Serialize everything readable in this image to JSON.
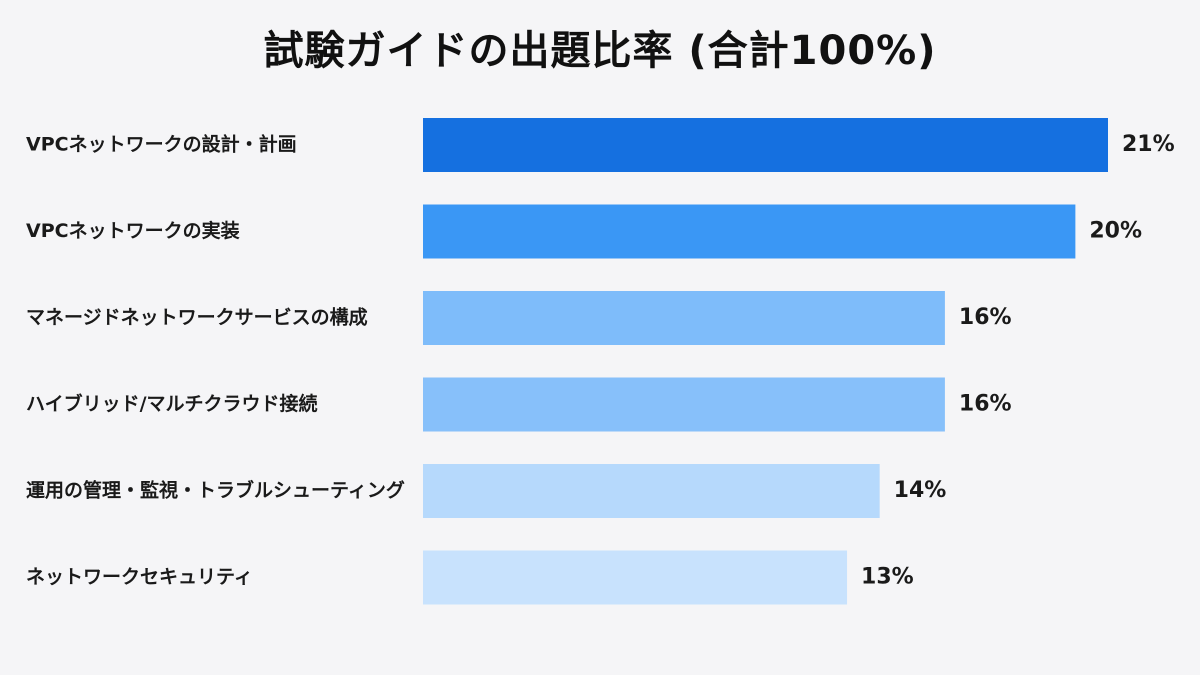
{
  "title": "試験ガイドの出題比率 (合計100%)",
  "chart_data": {
    "type": "bar",
    "orientation": "horizontal",
    "title": "試験ガイドの出題比率 (合計100%)",
    "categories": [
      "VPCネットワークの設計・計画",
      "VPCネットワークの実装",
      "マネージドネットワークサービスの構成",
      "ハイブリッド/マルチクラウド接続",
      "運用の管理・監視・トラブルシューティング",
      "ネットワークセキュリティ"
    ],
    "values": [
      21,
      20,
      16,
      16,
      14,
      13
    ],
    "value_labels": [
      "21%",
      "20%",
      "16%",
      "16%",
      "14%",
      "13%"
    ],
    "unit": "%",
    "xlim": [
      0,
      21
    ],
    "grid": false,
    "bar_colors": [
      "#1570e0",
      "#3a97f5",
      "#7ebcfa",
      "#87c0fa",
      "#b6d9fc",
      "#c8e2fd"
    ]
  }
}
